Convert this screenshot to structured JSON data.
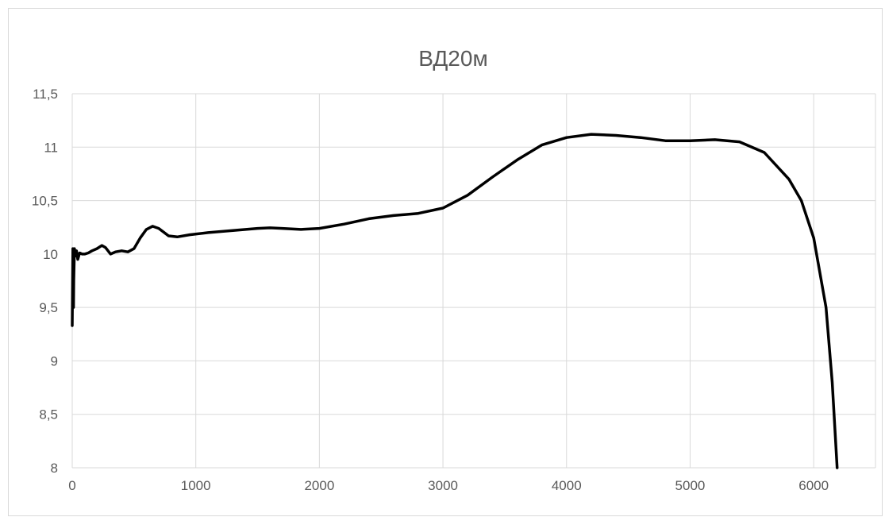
{
  "chart_data": {
    "type": "line",
    "title": "ВД20м",
    "xlabel": "",
    "ylabel": "",
    "xlim": [
      0,
      6500
    ],
    "ylim": [
      8,
      11.5
    ],
    "x_ticks": [
      0,
      1000,
      2000,
      3000,
      4000,
      5000,
      6000
    ],
    "x_tick_labels": [
      "0",
      "1000",
      "2000",
      "3000",
      "4000",
      "5000",
      "6000"
    ],
    "y_ticks": [
      8,
      8.5,
      9,
      9.5,
      10,
      10.5,
      11,
      11.5
    ],
    "y_tick_labels": [
      "8",
      "8,5",
      "9",
      "9,5",
      "10",
      "10,5",
      "11",
      "11,5"
    ],
    "grid": true,
    "legend": "none",
    "colors": {
      "line": "#000000",
      "grid": "#d9d9d9",
      "text": "#595959"
    },
    "series": [
      {
        "points": [
          [
            0,
            9.33
          ],
          [
            5,
            10.05
          ],
          [
            10,
            9.5
          ],
          [
            12,
            9.75
          ],
          [
            18,
            10.05
          ],
          [
            25,
            9.98
          ],
          [
            35,
            10.03
          ],
          [
            45,
            9.95
          ],
          [
            60,
            10.01
          ],
          [
            80,
            10.0
          ],
          [
            100,
            10.0
          ],
          [
            130,
            10.01
          ],
          [
            160,
            10.03
          ],
          [
            200,
            10.05
          ],
          [
            240,
            10.08
          ],
          [
            270,
            10.06
          ],
          [
            310,
            10.0
          ],
          [
            350,
            10.02
          ],
          [
            400,
            10.03
          ],
          [
            450,
            10.02
          ],
          [
            500,
            10.05
          ],
          [
            550,
            10.15
          ],
          [
            600,
            10.23
          ],
          [
            650,
            10.26
          ],
          [
            700,
            10.24
          ],
          [
            780,
            10.17
          ],
          [
            850,
            10.16
          ],
          [
            950,
            10.18
          ],
          [
            1100,
            10.2
          ],
          [
            1300,
            10.22
          ],
          [
            1500,
            10.24
          ],
          [
            1600,
            10.245
          ],
          [
            1700,
            10.24
          ],
          [
            1850,
            10.23
          ],
          [
            2000,
            10.24
          ],
          [
            2200,
            10.28
          ],
          [
            2400,
            10.33
          ],
          [
            2600,
            10.36
          ],
          [
            2800,
            10.38
          ],
          [
            3000,
            10.43
          ],
          [
            3200,
            10.55
          ],
          [
            3400,
            10.72
          ],
          [
            3600,
            10.88
          ],
          [
            3800,
            11.02
          ],
          [
            4000,
            11.09
          ],
          [
            4200,
            11.12
          ],
          [
            4400,
            11.11
          ],
          [
            4600,
            11.09
          ],
          [
            4800,
            11.06
          ],
          [
            5000,
            11.06
          ],
          [
            5200,
            11.07
          ],
          [
            5400,
            11.05
          ],
          [
            5600,
            10.95
          ],
          [
            5800,
            10.7
          ],
          [
            5900,
            10.5
          ],
          [
            6000,
            10.15
          ],
          [
            6100,
            9.5
          ],
          [
            6150,
            8.8
          ],
          [
            6190,
            8.0
          ]
        ]
      }
    ]
  }
}
